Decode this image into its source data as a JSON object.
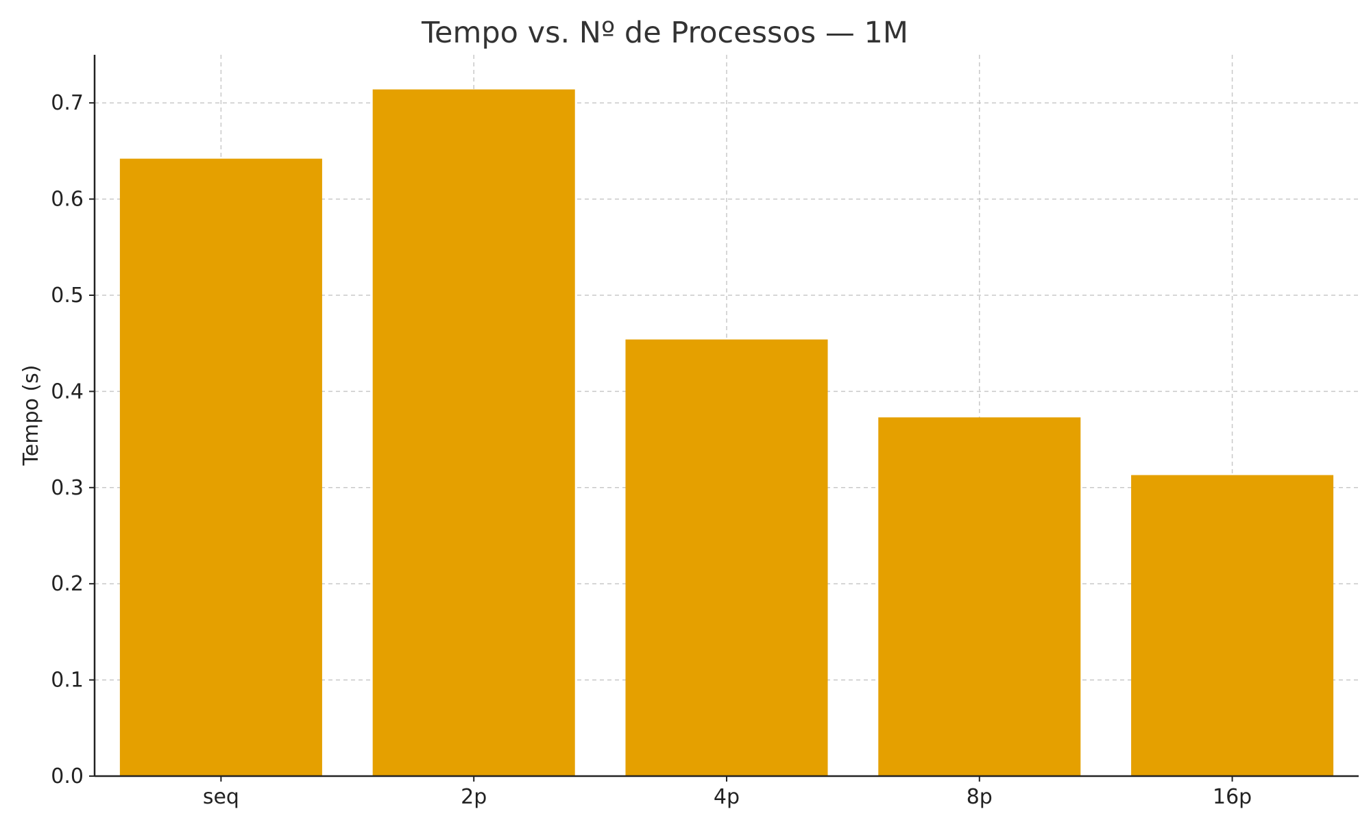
{
  "chart_data": {
    "type": "bar",
    "title": "Tempo vs. Nº de Processos — 1M",
    "xlabel": "",
    "ylabel": "Tempo (s)",
    "categories": [
      "seq",
      "2p",
      "4p",
      "8p",
      "16p"
    ],
    "values": [
      0.642,
      0.714,
      0.454,
      0.373,
      0.313
    ],
    "ylim": [
      0,
      0.75
    ],
    "yticks": [
      0.0,
      0.1,
      0.2,
      0.3,
      0.4,
      0.5,
      0.6,
      0.7
    ],
    "ytick_labels": [
      "0.0",
      "0.1",
      "0.2",
      "0.3",
      "0.4",
      "0.5",
      "0.6",
      "0.7"
    ],
    "grid": true,
    "bar_color": "#E5A000"
  }
}
